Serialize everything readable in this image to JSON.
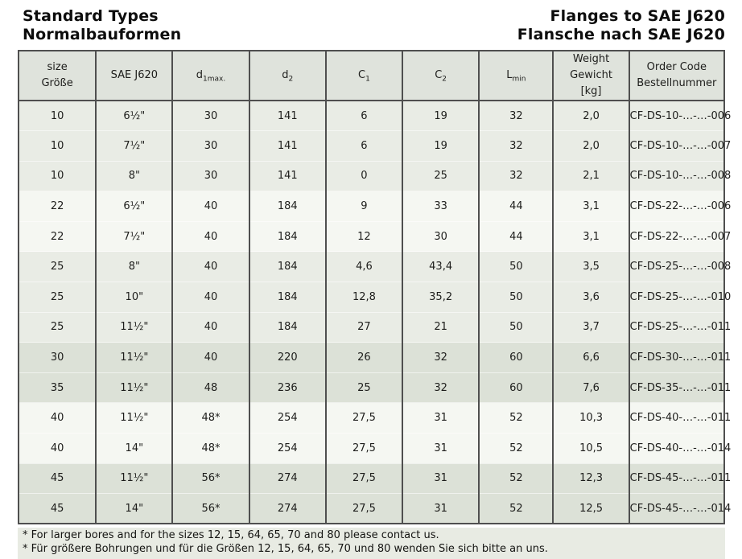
{
  "page": {
    "title_left_line1": "Standard Types",
    "title_left_line2": "Normalbauformen",
    "title_right_line1": "Flanges to SAE J620",
    "title_right_line2": "Flansche nach SAE J620"
  },
  "table": {
    "columns": [
      {
        "label": "size",
        "label2": "Größe"
      },
      {
        "label": "SAE J620"
      },
      {
        "base": "d",
        "sub": "1max."
      },
      {
        "base": "d",
        "sub": "2"
      },
      {
        "base": "C",
        "sub": "1"
      },
      {
        "base": "C",
        "sub": "2"
      },
      {
        "base": "L",
        "sub": "min"
      },
      {
        "label": "Weight",
        "label2": "Gewicht",
        "label3": "[kg]"
      },
      {
        "label": "Order Code",
        "label2": "Bestellnummer"
      }
    ],
    "rows": [
      {
        "tone": "a",
        "cells": [
          "10",
          "6½\"",
          "30",
          "141",
          "6",
          "19",
          "32",
          "2,0",
          "CF-DS-10-…-…-006"
        ]
      },
      {
        "tone": "a",
        "cells": [
          "10",
          "7½\"",
          "30",
          "141",
          "6",
          "19",
          "32",
          "2,0",
          "CF-DS-10-…-…-007"
        ]
      },
      {
        "tone": "a",
        "cells": [
          "10",
          "8\"",
          "30",
          "141",
          "0",
          "25",
          "32",
          "2,1",
          "CF-DS-10-…-…-008"
        ]
      },
      {
        "tone": "b",
        "cells": [
          "22",
          "6½\"",
          "40",
          "184",
          "9",
          "33",
          "44",
          "3,1",
          "CF-DS-22-…-…-006"
        ]
      },
      {
        "tone": "b",
        "cells": [
          "22",
          "7½\"",
          "40",
          "184",
          "12",
          "30",
          "44",
          "3,1",
          "CF-DS-22-…-…-007"
        ]
      },
      {
        "tone": "a",
        "cells": [
          "25",
          "8\"",
          "40",
          "184",
          "4,6",
          "43,4",
          "50",
          "3,5",
          "CF-DS-25-…-…-008"
        ]
      },
      {
        "tone": "a",
        "cells": [
          "25",
          "10\"",
          "40",
          "184",
          "12,8",
          "35,2",
          "50",
          "3,6",
          "CF-DS-25-…-…-010"
        ]
      },
      {
        "tone": "a",
        "cells": [
          "25",
          "11½\"",
          "40",
          "184",
          "27",
          "21",
          "50",
          "3,7",
          "CF-DS-25-…-…-011"
        ]
      },
      {
        "tone": "c",
        "cells": [
          "30",
          "11½\"",
          "40",
          "220",
          "26",
          "32",
          "60",
          "6,6",
          "CF-DS-30-…-…-011"
        ]
      },
      {
        "tone": "c",
        "cells": [
          "35",
          "11½\"",
          "48",
          "236",
          "25",
          "32",
          "60",
          "7,6",
          "CF-DS-35-…-…-011"
        ]
      },
      {
        "tone": "b",
        "cells": [
          "40",
          "11½\"",
          "48*",
          "254",
          "27,5",
          "31",
          "52",
          "10,3",
          "CF-DS-40-…-…-011"
        ]
      },
      {
        "tone": "b",
        "cells": [
          "40",
          "14\"",
          "48*",
          "254",
          "27,5",
          "31",
          "52",
          "10,5",
          "CF-DS-40-…-…-014"
        ]
      },
      {
        "tone": "c",
        "cells": [
          "45",
          "11½\"",
          "56*",
          "274",
          "27,5",
          "31",
          "52",
          "12,3",
          "CF-DS-45-…-…-011"
        ]
      },
      {
        "tone": "c",
        "cells": [
          "45",
          "14\"",
          "56*",
          "274",
          "27,5",
          "31",
          "52",
          "12,5",
          "CF-DS-45-…-…-014"
        ]
      }
    ]
  },
  "footnotes": [
    "* For larger bores and for the sizes 12, 15, 64, 65, 70 and 80 please contact us.",
    "* Für größere Bohrungen und für die Größen 12, 15, 64, 65, 70 und 80 wenden Sie sich bitte an uns."
  ],
  "colors": {
    "border": "#4f4f4f",
    "header_bg": "#dfe3dc",
    "row_tone_a": "#e9ece5",
    "row_tone_b": "#f5f7f2",
    "row_tone_c": "#dce1d7",
    "footnote_bg": "#e8ebe3",
    "text": "#1d1d1b"
  }
}
